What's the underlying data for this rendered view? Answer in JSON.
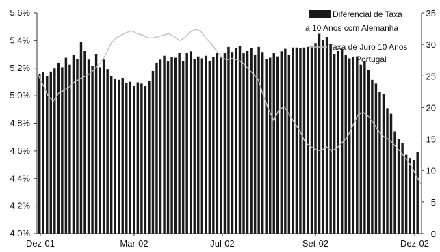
{
  "chart_data": {
    "type": "bar",
    "x_ticks": [
      "Dez-01",
      "Mar-02",
      "Jul-02",
      "Set-02",
      "Dez-02"
    ],
    "y_left": {
      "ticks": [
        "4.0%",
        "4.2%",
        "4.4%",
        "4.6%",
        "4.8%",
        "5.0%",
        "5.2%",
        "5.4%",
        "5.6%"
      ],
      "min": 4.0,
      "max": 5.6
    },
    "y_right": {
      "ticks": [
        "0",
        "5",
        "10",
        "15",
        "20",
        "25",
        "30",
        "35"
      ],
      "min": 0,
      "max": 35
    },
    "legend": {
      "bar_label_line1": "Diferencial de Taxa",
      "bar_label_line2": "a 10 Anos com Alemanha",
      "line_label_line1": "Taxa de Juro 10 Anos",
      "line_label_line2": "Portugal",
      "position": "top-right"
    },
    "bar_series": {
      "axis": "right",
      "values": [
        25.3,
        25.6,
        25.0,
        25.7,
        26.2,
        27.1,
        26.4,
        27.9,
        26.8,
        28.3,
        27.7,
        30.4,
        29.0,
        27.6,
        26.6,
        28.5,
        26.4,
        27.6,
        26.1,
        25.0,
        24.6,
        24.4,
        24.7,
        23.9,
        24.1,
        23.4,
        24.0,
        23.8,
        23.4,
        24.2,
        25.8,
        27.1,
        27.6,
        28.2,
        27.3,
        28.0,
        27.9,
        28.7,
        27.3,
        28.6,
        28.9,
        27.7,
        28.1,
        27.8,
        28.2,
        27.4,
        28.0,
        28.6,
        27.9,
        28.6,
        29.6,
        28.8,
        29.4,
        29.7,
        28.6,
        29.0,
        29.4,
        28.4,
        29.6,
        28.8,
        27.7,
        27.9,
        28.6,
        28.1,
        28.9,
        29.3,
        28.3,
        29.5,
        29.5,
        29.4,
        29.5,
        29.6,
        29.8,
        30.2,
        31.7,
        30.7,
        31.2,
        30.0,
        28.5,
        29.0,
        29.3,
        28.3,
        27.8,
        28.0,
        28.1,
        26.8,
        27.3,
        25.9,
        24.4,
        23.8,
        22.5,
        22.2,
        19.9,
        19.0,
        16.2,
        15.0,
        14.4,
        12.5,
        11.9,
        11.6,
        12.9
      ]
    },
    "line_series": {
      "axis": "left",
      "values": [
        5.16,
        5.08,
        5.0,
        4.96,
        5.02,
        5.04,
        5.06,
        5.1,
        5.12,
        5.14,
        5.16,
        5.2,
        5.24,
        5.3,
        5.38,
        5.42,
        5.44,
        5.46,
        5.47,
        5.45,
        5.44,
        5.42,
        5.42,
        5.43,
        5.44,
        5.45,
        5.43,
        5.4,
        5.42,
        5.46,
        5.48,
        5.47,
        5.42,
        5.38,
        5.33,
        5.28,
        5.26,
        5.27,
        5.26,
        5.24,
        5.2,
        5.16,
        5.12,
        5.0,
        4.9,
        4.82,
        4.9,
        4.92,
        4.86,
        4.8,
        4.74,
        4.66,
        4.63,
        4.61,
        4.6,
        4.63,
        4.6,
        4.62,
        4.66,
        4.7,
        4.78,
        4.86,
        4.88,
        4.85,
        4.8,
        4.74,
        4.7,
        4.68,
        4.64,
        4.6,
        4.55,
        4.5,
        4.43,
        4.36
      ]
    }
  }
}
